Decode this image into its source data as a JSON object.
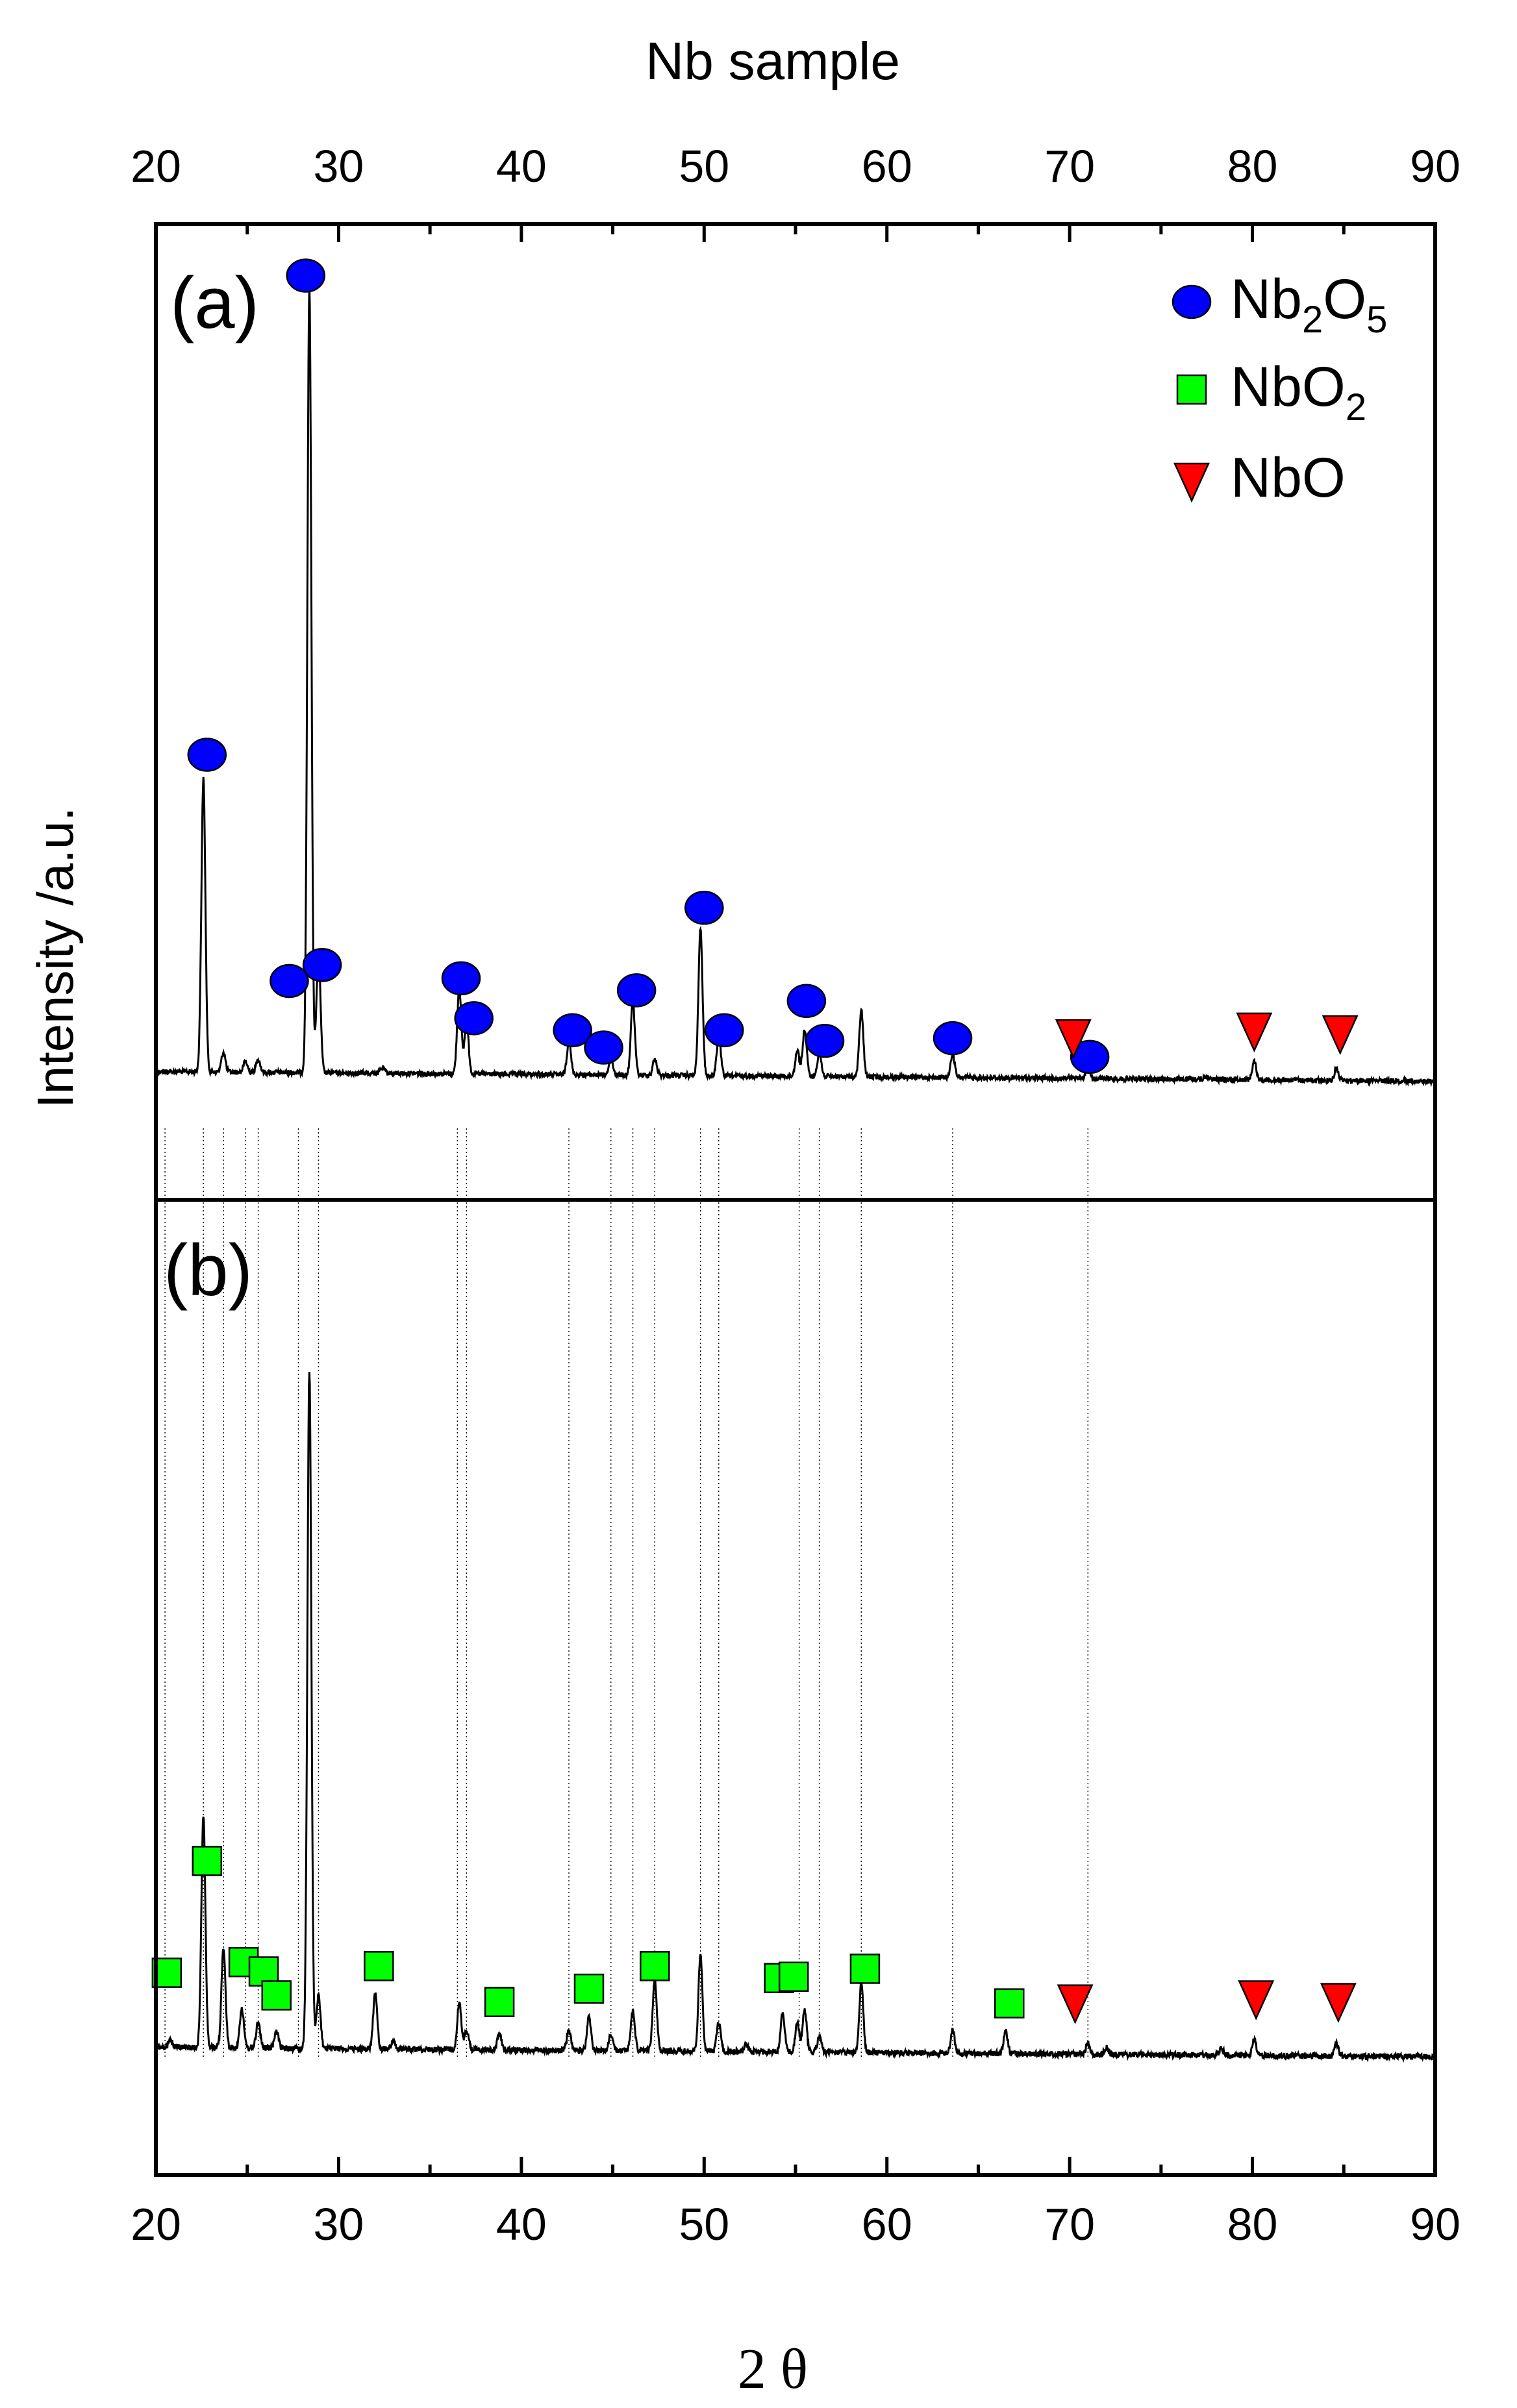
{
  "chart_data": {
    "type": "line",
    "title": "Nb sample",
    "xlabel": "2 θ",
    "ylabel": "Intensity /a.u.",
    "xlim": [
      20,
      90
    ],
    "xticks": [
      20,
      30,
      40,
      50,
      60,
      70,
      80,
      90
    ],
    "x_tick_labels": [
      "20",
      "30",
      "40",
      "50",
      "60",
      "70",
      "80",
      "90"
    ],
    "legend": {
      "placement": "top-right",
      "entries": [
        {
          "marker": "circle",
          "color": "#0000ff",
          "name": "Nb",
          "sub1": "2",
          "mid": "O",
          "sub2": "5"
        },
        {
          "marker": "square",
          "color": "#00ff00",
          "name": "NbO",
          "sub1": "2",
          "mid": "",
          "sub2": ""
        },
        {
          "marker": "triangle-down",
          "color": "#ff0000",
          "name": "NbO",
          "sub1": "",
          "mid": "",
          "sub2": ""
        }
      ]
    },
    "panels": [
      {
        "label": "(a)",
        "baseline": 0.12,
        "peaks": [
          {
            "x": 22.6,
            "h": 2.2
          },
          {
            "x": 23.7,
            "h": 0.15
          },
          {
            "x": 24.9,
            "h": 0.08
          },
          {
            "x": 25.6,
            "h": 0.1
          },
          {
            "x": 28.4,
            "h": 5.9
          },
          {
            "x": 28.9,
            "h": 0.9
          },
          {
            "x": 32.4,
            "h": 0.04
          },
          {
            "x": 36.6,
            "h": 0.65
          },
          {
            "x": 37.0,
            "h": 0.4
          },
          {
            "x": 42.6,
            "h": 0.25
          },
          {
            "x": 44.9,
            "h": 0.12
          },
          {
            "x": 46.1,
            "h": 0.55
          },
          {
            "x": 47.3,
            "h": 0.12
          },
          {
            "x": 49.8,
            "h": 1.1
          },
          {
            "x": 50.8,
            "h": 0.3
          },
          {
            "x": 55.1,
            "h": 0.2
          },
          {
            "x": 55.5,
            "h": 0.35
          },
          {
            "x": 56.3,
            "h": 0.18
          },
          {
            "x": 58.6,
            "h": 0.5
          },
          {
            "x": 63.6,
            "h": 0.17
          },
          {
            "x": 71.0,
            "h": 0.1
          },
          {
            "x": 77.5,
            "h": 0.03
          },
          {
            "x": 80.1,
            "h": 0.14
          },
          {
            "x": 84.6,
            "h": 0.09
          }
        ],
        "markers": [
          {
            "type": "circle",
            "x": 22.8,
            "y": 2.5
          },
          {
            "type": "circle",
            "x": 28.2,
            "y": 6.1
          },
          {
            "type": "circle",
            "x": 27.3,
            "y": 0.8
          },
          {
            "type": "circle",
            "x": 29.1,
            "y": 0.92
          },
          {
            "type": "circle",
            "x": 36.7,
            "y": 0.82
          },
          {
            "type": "circle",
            "x": 37.4,
            "y": 0.52
          },
          {
            "type": "circle",
            "x": 42.8,
            "y": 0.43
          },
          {
            "type": "circle",
            "x": 44.5,
            "y": 0.3
          },
          {
            "type": "circle",
            "x": 46.3,
            "y": 0.73
          },
          {
            "type": "circle",
            "x": 50.0,
            "y": 1.35
          },
          {
            "type": "circle",
            "x": 51.1,
            "y": 0.43
          },
          {
            "type": "circle",
            "x": 55.6,
            "y": 0.65
          },
          {
            "type": "circle",
            "x": 56.6,
            "y": 0.35
          },
          {
            "type": "circle",
            "x": 63.6,
            "y": 0.37
          },
          {
            "type": "circle",
            "x": 71.1,
            "y": 0.23
          },
          {
            "type": "triangle",
            "x": 70.2,
            "y": 0.38
          },
          {
            "type": "triangle",
            "x": 80.1,
            "y": 0.43
          },
          {
            "type": "triangle",
            "x": 84.8,
            "y": 0.41
          }
        ]
      },
      {
        "label": "(b)",
        "baseline": 0.12,
        "peaks": [
          {
            "x": 20.8,
            "h": 0.05
          },
          {
            "x": 22.6,
            "h": 1.75
          },
          {
            "x": 23.7,
            "h": 0.75
          },
          {
            "x": 24.7,
            "h": 0.3
          },
          {
            "x": 25.6,
            "h": 0.2
          },
          {
            "x": 26.6,
            "h": 0.12
          },
          {
            "x": 28.4,
            "h": 5.1
          },
          {
            "x": 28.9,
            "h": 0.4
          },
          {
            "x": 32.0,
            "h": 0.42
          },
          {
            "x": 33.0,
            "h": 0.06
          },
          {
            "x": 36.6,
            "h": 0.35
          },
          {
            "x": 37.0,
            "h": 0.15
          },
          {
            "x": 38.8,
            "h": 0.12
          },
          {
            "x": 42.6,
            "h": 0.15
          },
          {
            "x": 43.7,
            "h": 0.25
          },
          {
            "x": 44.9,
            "h": 0.12
          },
          {
            "x": 46.1,
            "h": 0.3
          },
          {
            "x": 47.3,
            "h": 0.55
          },
          {
            "x": 49.8,
            "h": 0.72
          },
          {
            "x": 50.8,
            "h": 0.22
          },
          {
            "x": 52.3,
            "h": 0.05
          },
          {
            "x": 54.3,
            "h": 0.3
          },
          {
            "x": 55.1,
            "h": 0.22
          },
          {
            "x": 55.5,
            "h": 0.32
          },
          {
            "x": 56.3,
            "h": 0.12
          },
          {
            "x": 58.6,
            "h": 0.52
          },
          {
            "x": 63.6,
            "h": 0.17
          },
          {
            "x": 66.5,
            "h": 0.17
          },
          {
            "x": 71.0,
            "h": 0.08
          },
          {
            "x": 72.0,
            "h": 0.05
          },
          {
            "x": 78.3,
            "h": 0.05
          },
          {
            "x": 80.1,
            "h": 0.12
          },
          {
            "x": 84.6,
            "h": 0.1
          }
        ],
        "markers": [
          {
            "type": "square",
            "x": 20.6,
            "y": 0.68
          },
          {
            "type": "square",
            "x": 22.8,
            "y": 1.52
          },
          {
            "type": "square",
            "x": 24.8,
            "y": 0.76
          },
          {
            "type": "square",
            "x": 25.9,
            "y": 0.69
          },
          {
            "type": "square",
            "x": 26.6,
            "y": 0.51
          },
          {
            "type": "square",
            "x": 32.2,
            "y": 0.73
          },
          {
            "type": "square",
            "x": 38.8,
            "y": 0.46
          },
          {
            "type": "square",
            "x": 43.7,
            "y": 0.56
          },
          {
            "type": "square",
            "x": 47.3,
            "y": 0.73
          },
          {
            "type": "square",
            "x": 54.1,
            "y": 0.64
          },
          {
            "type": "square",
            "x": 54.9,
            "y": 0.65
          },
          {
            "type": "square",
            "x": 58.8,
            "y": 0.71
          },
          {
            "type": "square",
            "x": 66.7,
            "y": 0.45
          },
          {
            "type": "triangle",
            "x": 70.3,
            "y": 0.46
          },
          {
            "type": "triangle",
            "x": 80.2,
            "y": 0.49
          },
          {
            "type": "triangle",
            "x": 84.7,
            "y": 0.47
          }
        ]
      }
    ],
    "guide_lines_x": [
      20.5,
      22.6,
      23.7,
      24.9,
      25.6,
      27.8,
      28.9,
      36.5,
      37.0,
      42.6,
      44.9,
      46.1,
      47.3,
      49.8,
      50.8,
      55.2,
      56.3,
      58.6,
      63.6,
      71.0
    ]
  }
}
